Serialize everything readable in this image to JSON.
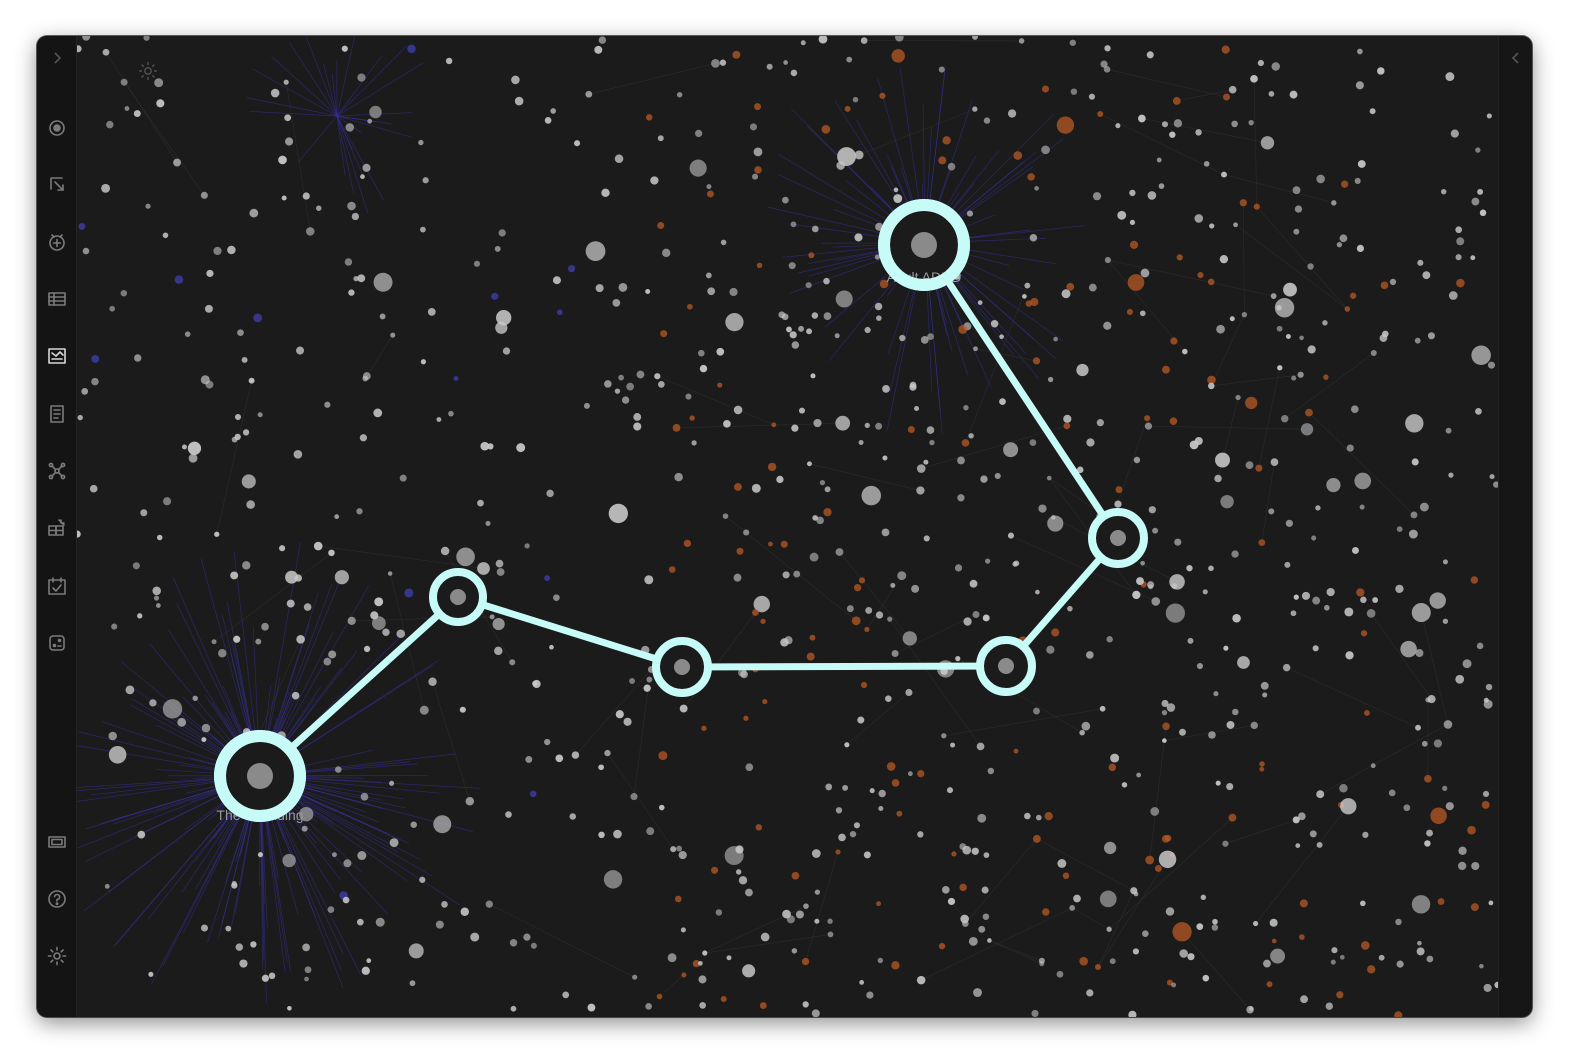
{
  "graph": {
    "node_label_start": "The Unfolding",
    "node_label_end": "Adult ADHD",
    "path_color": "#c6fbf8"
  },
  "colors": {
    "background": "#1b1b1b",
    "node_default": "#c8c8c8",
    "node_orange": "#b85a24",
    "node_blue": "#3a3a9a",
    "edge": "#3a3a3a",
    "edge_hub": "#3a32a8",
    "highlight": "#c6fbf8"
  },
  "ribbon": {
    "icons": [
      "open-quick-switcher-icon",
      "open-link-icon",
      "new-note-icon",
      "table-icon",
      "graph-analysis-icon",
      "templates-icon",
      "graph-view-icon",
      "dashboard-icon",
      "daily-note-icon",
      "dice-icon"
    ],
    "bottom_icons": [
      "vault-switcher-icon",
      "help-icon",
      "settings-icon"
    ]
  }
}
